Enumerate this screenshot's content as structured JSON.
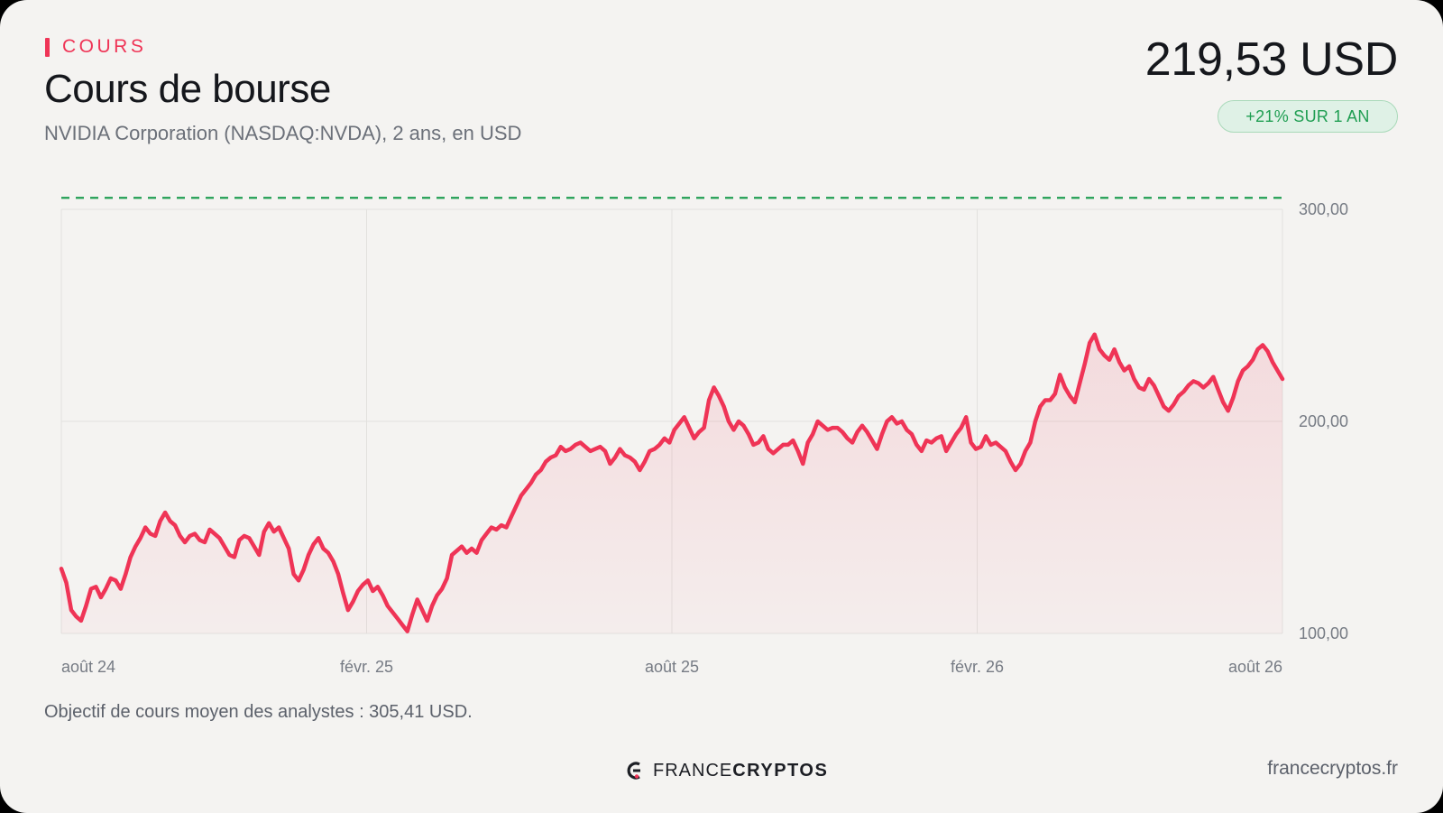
{
  "header": {
    "eyebrow": "COURS",
    "title": "Cours de bourse",
    "subtitle": "NVIDIA Corporation (NASDAQ:NVDA), 2 ans, en USD",
    "price": "219,53 USD",
    "change_badge": "+21% SUR 1 AN"
  },
  "footer": {
    "note": "Objectif de cours moyen des analystes : 305,41 USD.",
    "brand_light": "FRANCE",
    "brand_bold": "CRYPTOS",
    "domain": "francecryptos.fr"
  },
  "colors": {
    "line": "#ef3456",
    "target": "#1f9e52",
    "grid": "#e2e1de"
  },
  "chart_data": {
    "type": "line",
    "title": "",
    "xlabel": "",
    "ylabel": "",
    "x_range": [
      "2024-08",
      "2026-08"
    ],
    "ylim": [
      100,
      300
    ],
    "yticks": [
      300,
      200,
      100
    ],
    "ytick_labels": [
      "300,00",
      "200,00",
      "100,00"
    ],
    "xticks": [
      "août 24",
      "févr. 25",
      "août 25",
      "févr. 26",
      "août 26"
    ],
    "grid": true,
    "reference_lines": [
      {
        "value": 305.41,
        "style": "dashed"
      }
    ],
    "series": [
      {
        "values": [
          130.5,
          124,
          111,
          108,
          106,
          113,
          121,
          122,
          117,
          121,
          126,
          125,
          121,
          128,
          136,
          141,
          145,
          150,
          147,
          146,
          153,
          157,
          153,
          151,
          146,
          143,
          146,
          147,
          144,
          143,
          149,
          147,
          145,
          141,
          137,
          136,
          144,
          146,
          145,
          141,
          137,
          148,
          152,
          148,
          150,
          145,
          140,
          128,
          125,
          130,
          137,
          142,
          145,
          140,
          138,
          134,
          128,
          119,
          111,
          115,
          120,
          123,
          125,
          120,
          122,
          118,
          113,
          110,
          107,
          104,
          101,
          109,
          116,
          111,
          106,
          113,
          118,
          121,
          126,
          137,
          139,
          141,
          138,
          140,
          138,
          144,
          147,
          150,
          149,
          151,
          150,
          155,
          160,
          165,
          168,
          171,
          175,
          177,
          181,
          183,
          184,
          188,
          186,
          187,
          189,
          190,
          188,
          186,
          187,
          188,
          186,
          180,
          183,
          187,
          184,
          183,
          181,
          177,
          181,
          186,
          187,
          189,
          192,
          190,
          196,
          199,
          202,
          197,
          192,
          195,
          197,
          210,
          216,
          212,
          207,
          200,
          196,
          200,
          198,
          194,
          189,
          190,
          193,
          187,
          185,
          187,
          189,
          189,
          191,
          186,
          180,
          190,
          194,
          200,
          198,
          196,
          197,
          197,
          195,
          192,
          190,
          195,
          198,
          195,
          191,
          187,
          194,
          200,
          202,
          199,
          200,
          196,
          194,
          189,
          186,
          191,
          190,
          192,
          193,
          186,
          190,
          194,
          197,
          202,
          190,
          187,
          188,
          193,
          189,
          190,
          188,
          186,
          181,
          177,
          180,
          186,
          190,
          200,
          207,
          210,
          210,
          213,
          222,
          216,
          212,
          209,
          218,
          227,
          237,
          241,
          234,
          231,
          229,
          234,
          228,
          224,
          226,
          220,
          216,
          215,
          220,
          217,
          212,
          207,
          205,
          208,
          212,
          214,
          217,
          219,
          218,
          216,
          218,
          221,
          215,
          209,
          205,
          211,
          219,
          224,
          226,
          229,
          234,
          236,
          233,
          228,
          224,
          220
        ]
      }
    ]
  }
}
